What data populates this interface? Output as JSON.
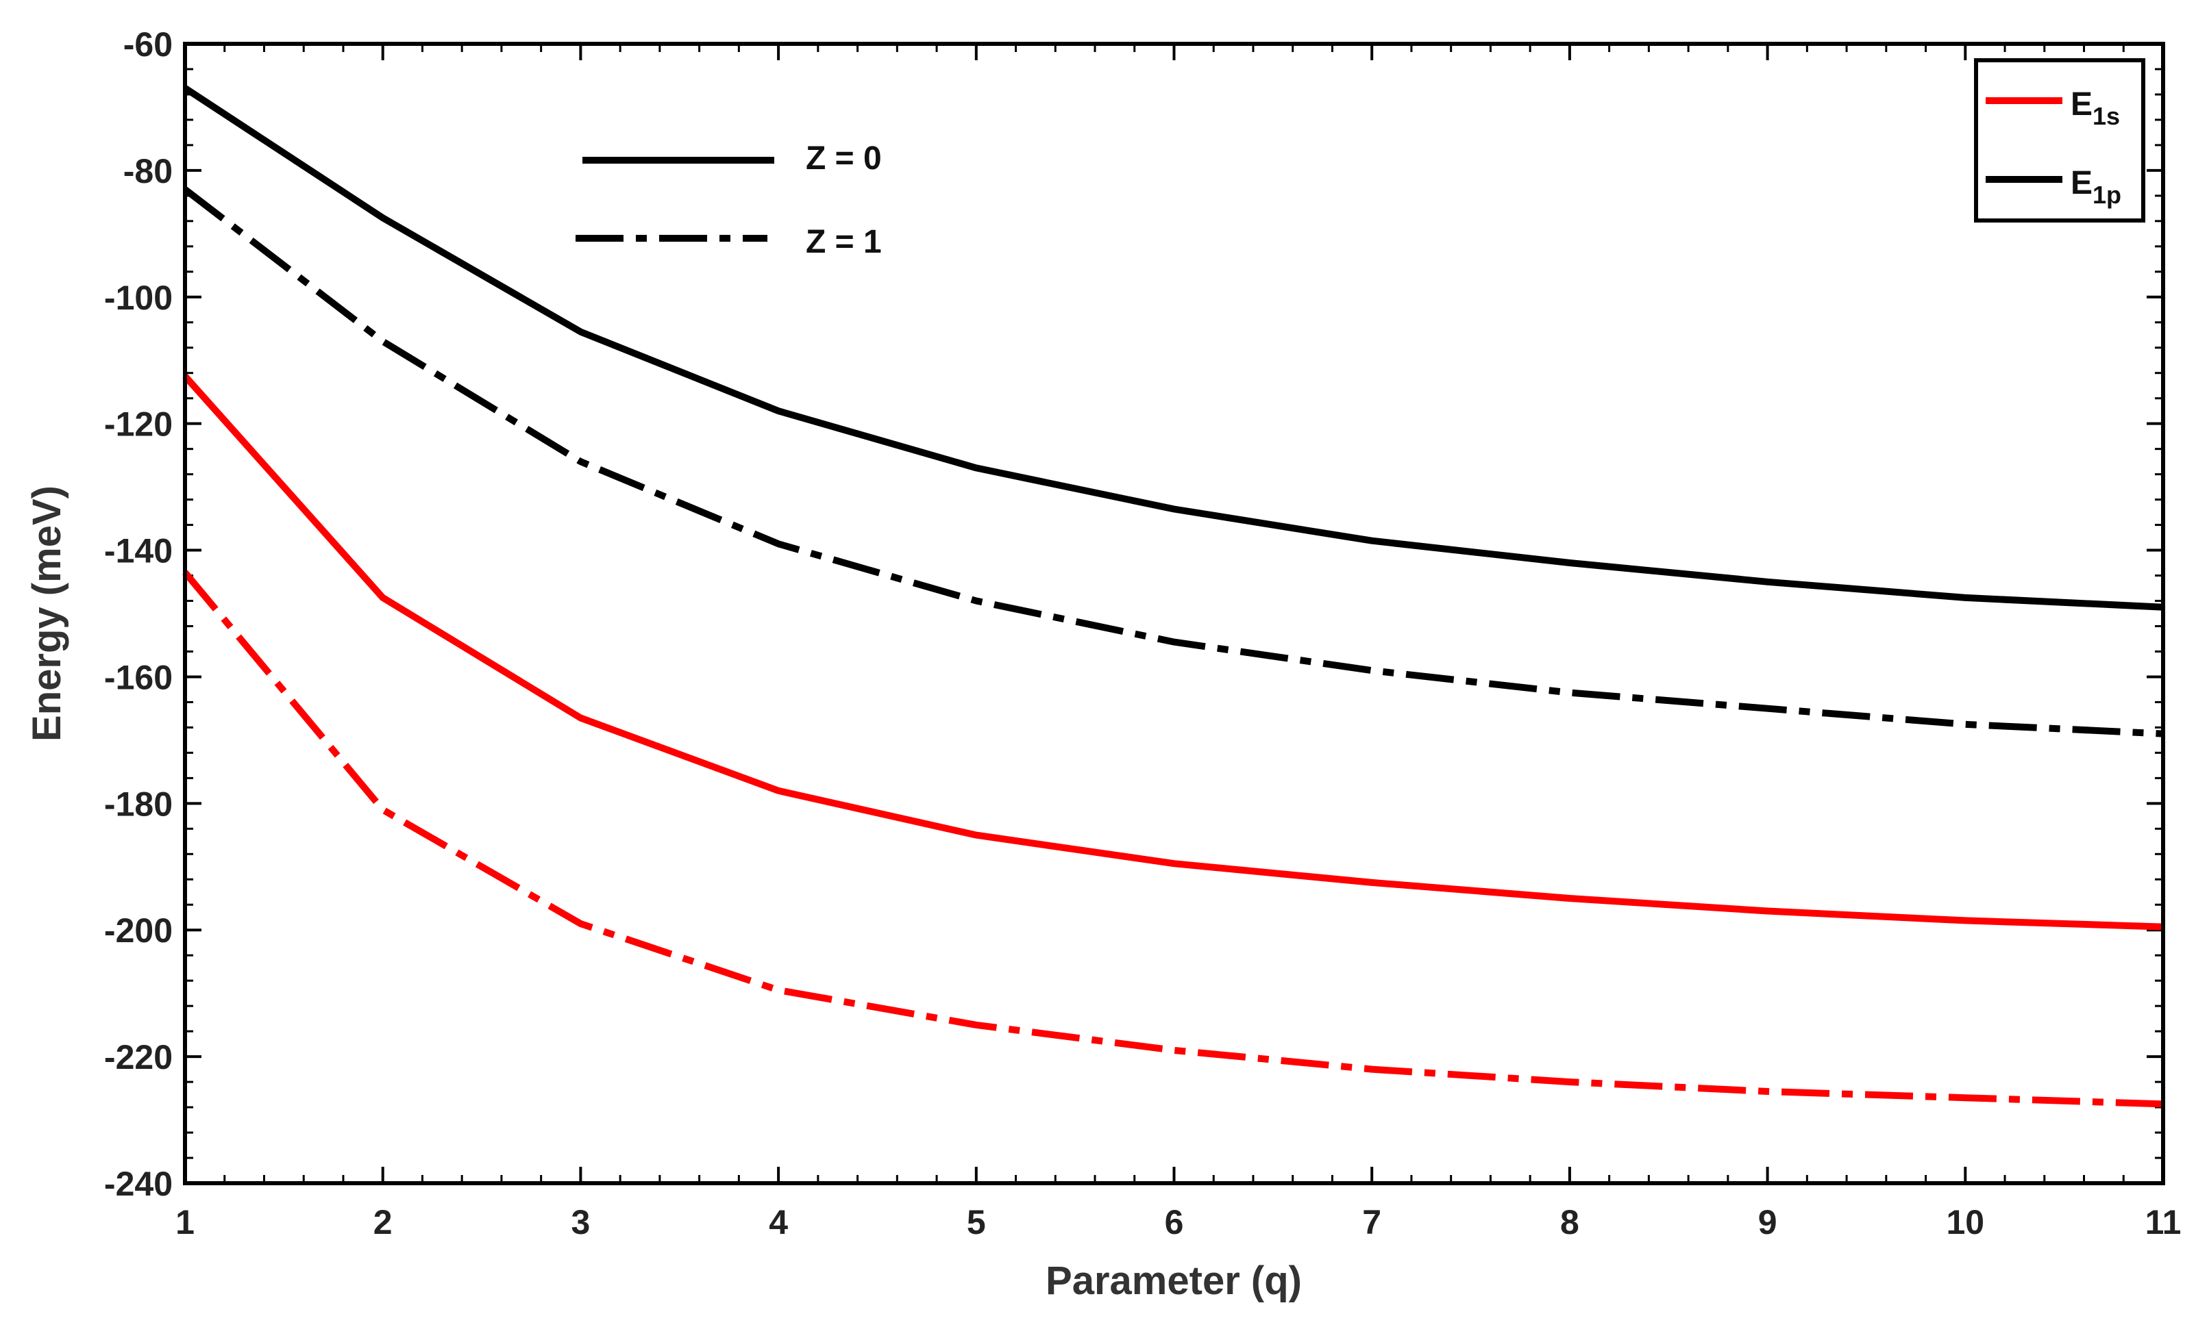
{
  "chart_data": {
    "type": "line",
    "title": "",
    "xlabel": "Parameter (q)",
    "ylabel": "Energy (meV)",
    "xlim": [
      1,
      11
    ],
    "ylim": [
      -240,
      -60
    ],
    "xticks": [
      1,
      2,
      3,
      4,
      5,
      6,
      7,
      8,
      9,
      10,
      11
    ],
    "yticks": [
      -60,
      -80,
      -100,
      -120,
      -140,
      -160,
      -180,
      -200,
      -220,
      -240
    ],
    "x": [
      1,
      2,
      3,
      4,
      5,
      6,
      7,
      8,
      9,
      10,
      11
    ],
    "series": [
      {
        "name": "E1p, Z = 0",
        "color": "#000000",
        "dash": "solid",
        "values": [
          -67,
          -87.5,
          -105.5,
          -118,
          -127,
          -133.5,
          -138.5,
          -142,
          -145,
          -147.5,
          -149
        ]
      },
      {
        "name": "E1p, Z = 1",
        "color": "#000000",
        "dash": "dashdot",
        "values": [
          -83,
          -107,
          -126,
          -139,
          -148,
          -154.5,
          -159,
          -162.5,
          -165,
          -167.5,
          -169
        ]
      },
      {
        "name": "E1s, Z = 0",
        "color": "#ff0000",
        "dash": "solid",
        "values": [
          -112.5,
          -147.5,
          -166.5,
          -178,
          -185,
          -189.5,
          -192.5,
          -195,
          -197,
          -198.5,
          -199.5
        ]
      },
      {
        "name": "E1s, Z = 1",
        "color": "#ff0000",
        "dash": "dashdot",
        "values": [
          -143.5,
          -181,
          -199,
          -209.5,
          -215,
          -219,
          -222,
          -224,
          -225.5,
          -226.5,
          -227.5
        ]
      }
    ],
    "legend_box": {
      "placement": "top-right",
      "entries": [
        {
          "main": "E",
          "sub": "1s",
          "color": "#ff0000"
        },
        {
          "main": "E",
          "sub": "1p",
          "color": "#000000"
        }
      ]
    },
    "legend_style": {
      "placement": "top-left",
      "entries": [
        {
          "label": "Z = 0",
          "dash": "solid",
          "color": "#000000"
        },
        {
          "label": "Z = 1",
          "dash": "dashdot",
          "color": "#000000"
        }
      ]
    }
  }
}
